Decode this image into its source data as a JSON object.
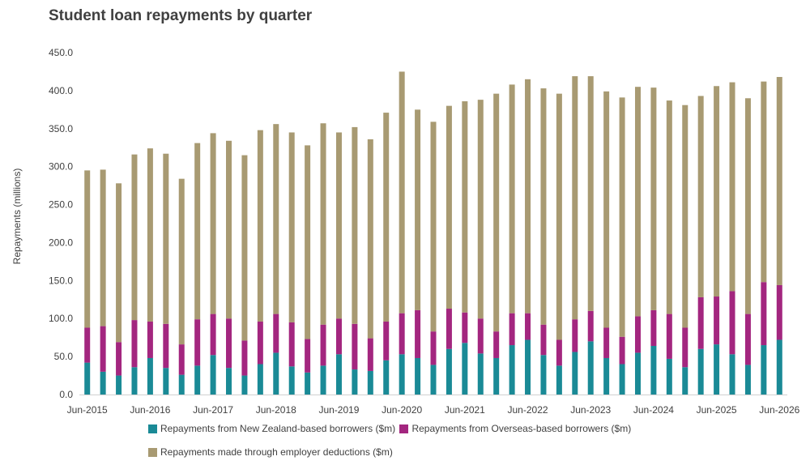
{
  "chart_data": {
    "type": "bar",
    "stacked": true,
    "title": "Student loan repayments by quarter",
    "ylabel": "Repayments (millions)",
    "xlabel": "",
    "ylim": [
      0,
      450
    ],
    "ytick_labels": [
      "0.0",
      "50.0",
      "100.0",
      "150.0",
      "200.0",
      "250.0",
      "300.0",
      "350.0",
      "400.0",
      "450.0"
    ],
    "grid": false,
    "legend_position": "bottom",
    "categories": [
      "Jun-2015",
      "Sep-2015",
      "Dec-2015",
      "Mar-2016",
      "Jun-2016",
      "Sep-2016",
      "Dec-2016",
      "Mar-2017",
      "Jun-2017",
      "Sep-2017",
      "Dec-2017",
      "Mar-2018",
      "Jun-2018",
      "Sep-2018",
      "Dec-2018",
      "Mar-2019",
      "Jun-2019",
      "Sep-2019",
      "Dec-2019",
      "Mar-2020",
      "Jun-2020",
      "Sep-2020",
      "Dec-2020",
      "Mar-2021",
      "Jun-2021",
      "Sep-2021",
      "Dec-2021",
      "Mar-2022",
      "Jun-2022",
      "Sep-2022",
      "Dec-2022",
      "Mar-2023",
      "Jun-2023",
      "Sep-2023",
      "Dec-2023",
      "Mar-2024",
      "Jun-2024",
      "Sep-2024",
      "Dec-2024",
      "Mar-2025",
      "Jun-2025",
      "Sep-2025",
      "Dec-2025",
      "Mar-2026",
      "Jun-2026"
    ],
    "tick_labels": [
      "Jun-2015",
      "Jun-2016",
      "Jun-2017",
      "Jun-2018",
      "Jun-2019",
      "Jun-2020",
      "Jun-2021",
      "Jun-2022",
      "Jun-2023",
      "Jun-2024",
      "Jun-2025",
      "Jun-2026"
    ],
    "series": [
      {
        "name": "Repayments from New Zealand-based borrowers ($m)",
        "color": "#1a8a96",
        "values": [
          42,
          30,
          25,
          36,
          48,
          35,
          26,
          38,
          52,
          35,
          25,
          40,
          55,
          37,
          29,
          38,
          53,
          33,
          31,
          45,
          53,
          48,
          39,
          60,
          68,
          54,
          48,
          65,
          72,
          52,
          38,
          56,
          70,
          48,
          40,
          55,
          64,
          47,
          36,
          60,
          66,
          53,
          39,
          65,
          72
        ]
      },
      {
        "name": "Repayments from Overseas-based borrowers ($m)",
        "color": "#a3267f",
        "values": [
          46,
          60,
          44,
          62,
          48,
          58,
          40,
          61,
          54,
          65,
          46,
          56,
          51,
          58,
          44,
          54,
          47,
          60,
          43,
          51,
          54,
          63,
          44,
          53,
          40,
          46,
          35,
          42,
          35,
          40,
          34,
          43,
          40,
          40,
          36,
          48,
          47,
          59,
          52,
          68,
          63,
          83,
          67,
          83,
          72
        ]
      },
      {
        "name": "Repayments made through employer deductions ($m)",
        "color": "#a89a72",
        "values": [
          207,
          206,
          209,
          218,
          228,
          224,
          218,
          232,
          238,
          234,
          244,
          252,
          250,
          250,
          255,
          265,
          245,
          259,
          262,
          275,
          318,
          264,
          276,
          267,
          278,
          288,
          313,
          301,
          308,
          311,
          324,
          320,
          309,
          311,
          315,
          302,
          293,
          281,
          293,
          265,
          277,
          275,
          284,
          264,
          274
        ]
      }
    ]
  }
}
